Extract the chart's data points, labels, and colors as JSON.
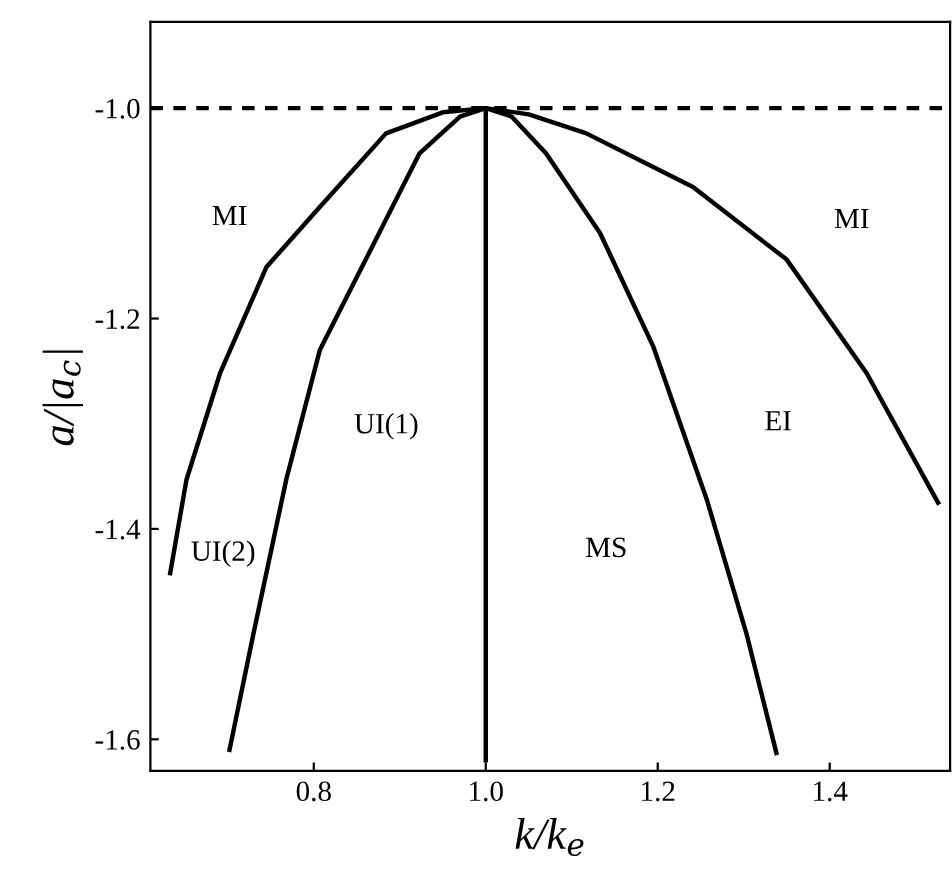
{
  "chart_data": {
    "type": "line",
    "xlabel": "k/k$_{e}$",
    "ylabel": "a/|a$_{c}$|",
    "xlim": [
      0.61,
      1.54
    ],
    "ylim": [
      -1.63,
      -0.918
    ],
    "xticks": [
      0.8,
      {
        "value": 1.0,
        "label": "1.0"
      },
      1.2,
      1.4
    ],
    "yticks": [
      -1.6,
      -1.4,
      -1.2,
      {
        "value": -1.0,
        "label": "-1.0"
      }
    ],
    "grid": false,
    "legend": false,
    "marker": "none",
    "line_style": "solid",
    "series": [
      {
        "color": "#000000",
        "x": [
          0.633,
          0.652,
          0.691,
          0.745,
          0.807,
          0.884,
          0.95,
          1.0,
          1.05,
          1.117,
          1.241,
          1.35,
          1.443,
          1.526
        ],
        "values": [
          -1.442,
          -1.353,
          -1.252,
          -1.151,
          -1.094,
          -1.024,
          -1.004,
          -1.0,
          -1.006,
          -1.024,
          -1.075,
          -1.144,
          -1.252,
          -1.375
        ]
      },
      {
        "color": "#000000",
        "x": [
          0.702,
          0.73,
          0.768,
          0.807,
          0.923,
          0.97,
          1.0,
          1.03,
          1.07,
          1.133,
          1.195,
          1.257,
          1.303,
          1.338
        ],
        "values": [
          -1.61,
          -1.499,
          -1.353,
          -1.23,
          -1.043,
          -1.008,
          -1.0,
          -1.008,
          -1.043,
          -1.119,
          -1.227,
          -1.372,
          -1.499,
          -1.613
        ]
      },
      {
        "color": "#000000",
        "x": [
          1.0,
          1.0
        ],
        "values": [
          -1.0,
          -1.62
        ]
      }
    ],
    "ref_lines": [
      {
        "axis": "y",
        "value": -1.0,
        "label": null,
        "color": "#000000",
        "line_style": "dashed"
      }
    ],
    "annotations": [
      "MI",
      "MI",
      "UI(1)",
      "EI",
      "MS",
      "UI(2)"
    ]
  }
}
